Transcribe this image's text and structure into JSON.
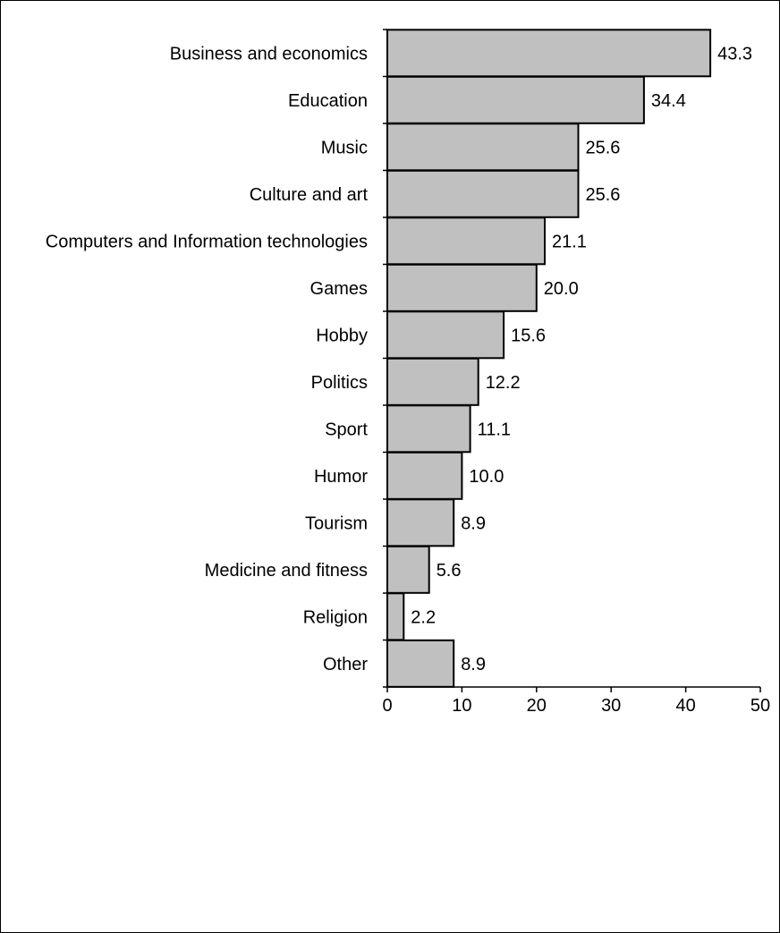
{
  "chart_data": {
    "type": "bar",
    "orientation": "horizontal",
    "categories": [
      "Business and economics",
      "Education",
      "Music",
      "Culture and art",
      "Computers and Information technologies",
      "Games",
      "Hobby",
      "Politics",
      "Sport",
      "Humor",
      "Tourism",
      "Medicine and fitness",
      "Religion",
      "Other"
    ],
    "values": [
      43.3,
      34.4,
      25.6,
      25.6,
      21.1,
      20.0,
      15.6,
      12.2,
      11.1,
      10.0,
      8.9,
      5.6,
      2.2,
      8.9
    ],
    "value_labels": [
      "43.3",
      "34.4",
      "25.6",
      "25.6",
      "21.1",
      "20.0",
      "15.6",
      "12.2",
      "11.1",
      "10.0",
      "8.9",
      "5.6",
      "2.2",
      "8.9"
    ],
    "xticks": [
      "0",
      "10",
      "20",
      "30",
      "40",
      "50"
    ],
    "xlim": [
      0,
      50
    ],
    "grid": false,
    "legend": "none",
    "bar_color": "#c0c0c0",
    "bar_edge_color": "#000000"
  }
}
